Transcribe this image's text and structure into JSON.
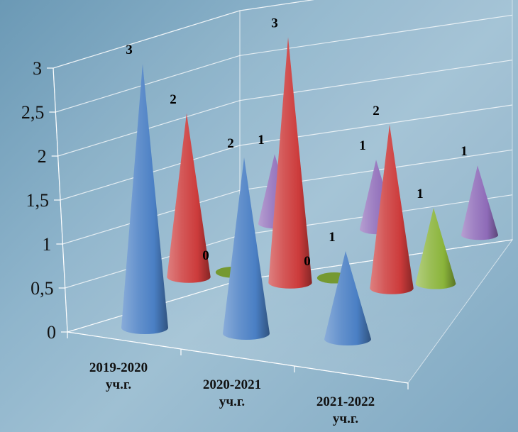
{
  "chart_data": {
    "type": "bar",
    "subtype": "3d-cone-clustered",
    "title": "",
    "xlabel": "",
    "ylabel": "",
    "ylim": [
      0,
      3
    ],
    "yticks": [
      "0",
      "0,5",
      "1",
      "1,5",
      "2",
      "2,5",
      "3"
    ],
    "grid": true,
    "legend": "none",
    "categories": [
      [
        "2019-2020",
        "уч.г."
      ],
      [
        "2020-2021",
        "уч.г."
      ],
      [
        "2021-2022",
        "уч.г."
      ]
    ],
    "series": [
      {
        "color": "#4a7fc4",
        "values": [
          3,
          2,
          1
        ]
      },
      {
        "color": "#cc3b3b",
        "values": [
          2,
          3,
          2
        ]
      },
      {
        "color": "#8ab43a",
        "values": [
          0,
          0,
          1
        ]
      },
      {
        "color": "#8e6bb8",
        "values": [
          1,
          1,
          1
        ]
      }
    ],
    "data_labels": true
  }
}
